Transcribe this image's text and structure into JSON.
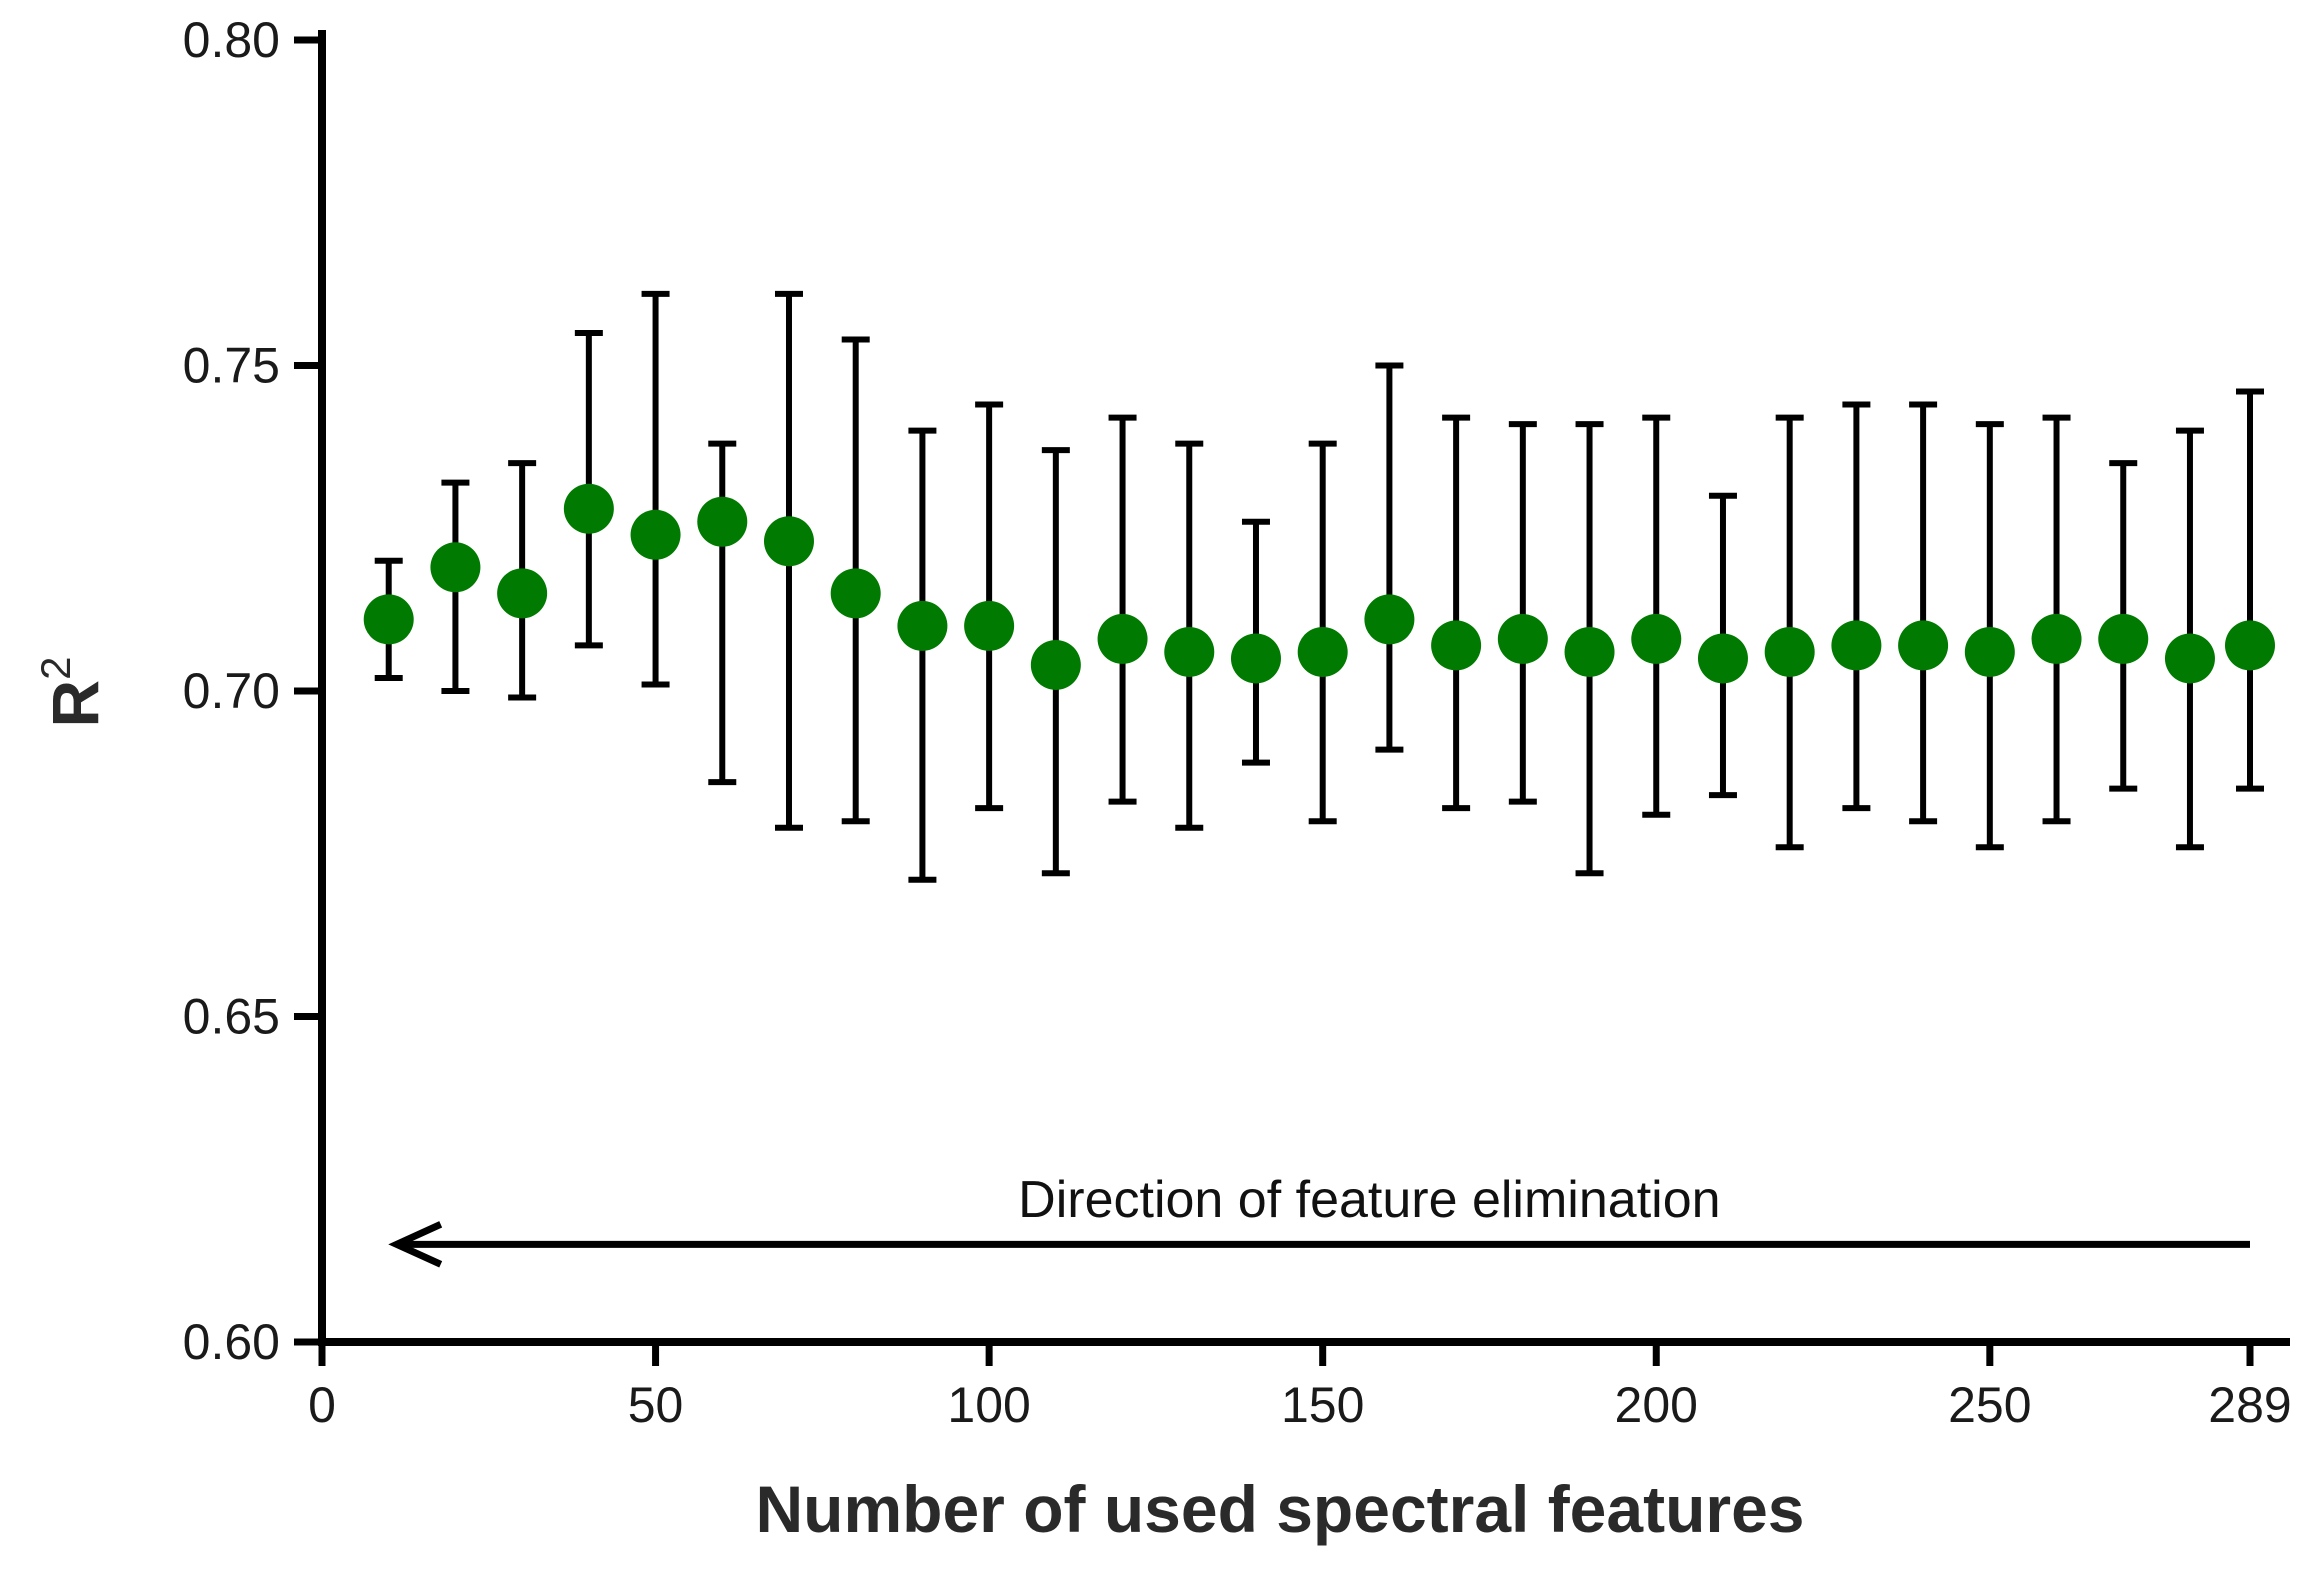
{
  "chart_data": {
    "type": "scatter",
    "title": "",
    "xlabel": "Number of used spectral features",
    "ylabel": "R",
    "ylabel_superscript": "2",
    "xlim": [
      0,
      289
    ],
    "ylim": [
      0.6,
      0.8
    ],
    "x_ticks": [
      0,
      50,
      100,
      150,
      200,
      250,
      289
    ],
    "x_tick_labels": [
      "0",
      "50",
      "100",
      "150",
      "200",
      "250",
      "289"
    ],
    "y_ticks": [
      0.6,
      0.65,
      0.7,
      0.75,
      0.8
    ],
    "y_tick_labels": [
      "0.60",
      "0.65",
      "0.70",
      "0.75",
      "0.80"
    ],
    "grid": false,
    "marker_color": "#007a00",
    "errorbar_color": "#000000",
    "annotation": {
      "text": "Direction of feature elimination",
      "arrow_from_x": 289,
      "arrow_to_x": 10,
      "arrow_y": 0.615,
      "text_y": 0.622
    },
    "series": [
      {
        "points": [
          {
            "x": 10,
            "y": 0.711,
            "low": 0.702,
            "high": 0.72
          },
          {
            "x": 20,
            "y": 0.719,
            "low": 0.7,
            "high": 0.732
          },
          {
            "x": 30,
            "y": 0.715,
            "low": 0.699,
            "high": 0.735
          },
          {
            "x": 40,
            "y": 0.728,
            "low": 0.707,
            "high": 0.755
          },
          {
            "x": 50,
            "y": 0.724,
            "low": 0.701,
            "high": 0.761
          },
          {
            "x": 60,
            "y": 0.726,
            "low": 0.686,
            "high": 0.738
          },
          {
            "x": 70,
            "y": 0.723,
            "low": 0.679,
            "high": 0.761
          },
          {
            "x": 80,
            "y": 0.715,
            "low": 0.68,
            "high": 0.754
          },
          {
            "x": 90,
            "y": 0.71,
            "low": 0.671,
            "high": 0.74
          },
          {
            "x": 100,
            "y": 0.71,
            "low": 0.682,
            "high": 0.744
          },
          {
            "x": 110,
            "y": 0.704,
            "low": 0.672,
            "high": 0.737
          },
          {
            "x": 120,
            "y": 0.708,
            "low": 0.683,
            "high": 0.742
          },
          {
            "x": 130,
            "y": 0.706,
            "low": 0.679,
            "high": 0.738
          },
          {
            "x": 140,
            "y": 0.705,
            "low": 0.689,
            "high": 0.726
          },
          {
            "x": 150,
            "y": 0.706,
            "low": 0.68,
            "high": 0.738
          },
          {
            "x": 160,
            "y": 0.711,
            "low": 0.691,
            "high": 0.75
          },
          {
            "x": 170,
            "y": 0.707,
            "low": 0.682,
            "high": 0.742
          },
          {
            "x": 180,
            "y": 0.708,
            "low": 0.683,
            "high": 0.741
          },
          {
            "x": 190,
            "y": 0.706,
            "low": 0.672,
            "high": 0.741
          },
          {
            "x": 200,
            "y": 0.708,
            "low": 0.681,
            "high": 0.742
          },
          {
            "x": 210,
            "y": 0.705,
            "low": 0.684,
            "high": 0.73
          },
          {
            "x": 220,
            "y": 0.706,
            "low": 0.676,
            "high": 0.742
          },
          {
            "x": 230,
            "y": 0.707,
            "low": 0.682,
            "high": 0.744
          },
          {
            "x": 240,
            "y": 0.707,
            "low": 0.68,
            "high": 0.744
          },
          {
            "x": 250,
            "y": 0.706,
            "low": 0.676,
            "high": 0.741
          },
          {
            "x": 260,
            "y": 0.708,
            "low": 0.68,
            "high": 0.742
          },
          {
            "x": 270,
            "y": 0.708,
            "low": 0.685,
            "high": 0.735
          },
          {
            "x": 280,
            "y": 0.705,
            "low": 0.676,
            "high": 0.74
          },
          {
            "x": 289,
            "y": 0.707,
            "low": 0.685,
            "high": 0.746
          }
        ]
      }
    ]
  }
}
